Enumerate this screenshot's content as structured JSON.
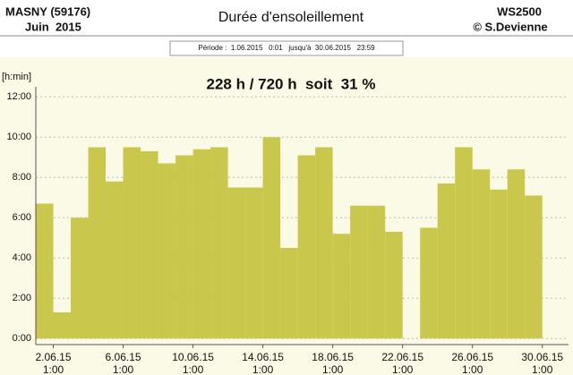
{
  "chart_data": {
    "type": "bar",
    "title": "Durée d'ensoleillement",
    "station": "MASNY (59176)",
    "month": "Juin  2015",
    "device": "WS2500",
    "author": "© S.Devienne",
    "period": "Période :  1.06.2015   0:01   jusqu'à  30.06.2015   23:59",
    "annotation": "228 h / 720 h  soit  31 %",
    "y_label": "[h:min]",
    "x": [
      1,
      2,
      3,
      4,
      5,
      6,
      7,
      8,
      9,
      10,
      11,
      12,
      13,
      14,
      15,
      16,
      17,
      18,
      19,
      20,
      21,
      22,
      23,
      24,
      25,
      26,
      27,
      28,
      29
    ],
    "values": [
      6.7,
      1.3,
      6.0,
      9.5,
      7.8,
      9.5,
      9.3,
      8.7,
      9.1,
      9.4,
      9.5,
      7.5,
      7.5,
      10.0,
      4.5,
      9.1,
      9.5,
      5.2,
      6.6,
      6.6,
      5.3,
      0,
      5.5,
      7.7,
      9.5,
      8.4,
      7.4,
      8.4,
      7.1
    ],
    "color": "#c9c84c",
    "xlim": [
      1,
      31.5
    ],
    "xticks": [
      {
        "value": 2,
        "label": "2.06.15",
        "time": "1:00"
      },
      {
        "value": 6,
        "label": "6.06.15",
        "time": "1:00"
      },
      {
        "value": 10,
        "label": "10.06.15",
        "time": "1:00"
      },
      {
        "value": 14,
        "label": "14.06.15",
        "time": "1:00"
      },
      {
        "value": 18,
        "label": "18.06.15",
        "time": "1:00"
      },
      {
        "value": 22,
        "label": "22.06.15",
        "time": "1:00"
      },
      {
        "value": 26,
        "label": "26.06.15",
        "time": "1:00"
      },
      {
        "value": 30,
        "label": "30.06.15",
        "time": "1:00"
      }
    ],
    "ylim": [
      -0.3,
      12.5
    ],
    "yticks": [
      {
        "value": 0,
        "label": "0:00"
      },
      {
        "value": 2,
        "label": "2:00"
      },
      {
        "value": 4,
        "label": "4:00"
      },
      {
        "value": 6,
        "label": "6:00"
      },
      {
        "value": 8,
        "label": "8:00"
      },
      {
        "value": 10,
        "label": "10:00"
      },
      {
        "value": 12,
        "label": "12:00"
      }
    ],
    "grid": true
  }
}
